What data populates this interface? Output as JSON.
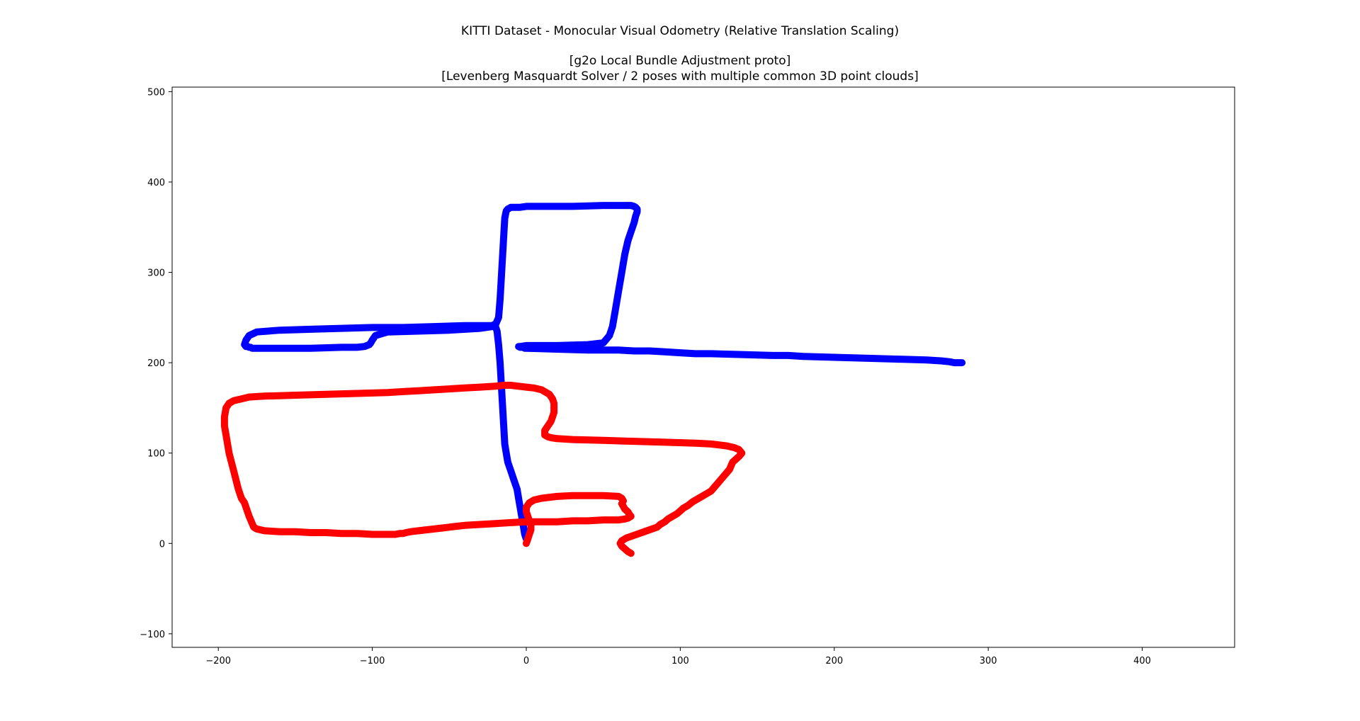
{
  "chart_data": {
    "type": "line",
    "title": [
      "KITTI Dataset - Monocular Visual Odometry (Relative Translation Scaling)",
      "",
      "[g2o Local Bundle Adjustment proto]",
      "[Levenberg Masquardt Solver / 2 poses with multiple common 3D point clouds]"
    ],
    "xlabel": "",
    "ylabel": "",
    "xlim": [
      -230,
      460
    ],
    "ylim": [
      -115,
      505
    ],
    "xticks": [
      -200,
      -100,
      0,
      100,
      200,
      300,
      400
    ],
    "yticks": [
      -100,
      0,
      100,
      200,
      300,
      400,
      500
    ],
    "xtick_labels": [
      "−200",
      "−100",
      "0",
      "100",
      "200",
      "300",
      "400"
    ],
    "ytick_labels": [
      "−100",
      "0",
      "100",
      "200",
      "300",
      "400",
      "500"
    ],
    "grid": false,
    "legend": "none",
    "series": [
      {
        "color": "#0000ff",
        "x": [
          0,
          -1,
          -2,
          -3,
          -4,
          -5,
          -6,
          -8,
          -10,
          -12,
          -13,
          -14,
          -15,
          -16,
          -17,
          -18,
          -19,
          -20,
          -20,
          -21,
          -22,
          -24,
          -30,
          -40,
          -60,
          -80,
          -100,
          -120,
          -140,
          -160,
          -175,
          -180,
          -182,
          -183,
          -182,
          -181,
          -180,
          -179,
          -178,
          -177,
          -176,
          -175,
          -174,
          -170,
          -160,
          -140,
          -120,
          -110,
          -105,
          -102,
          -101,
          -100,
          -98,
          -90,
          -70,
          -50,
          -30,
          -22,
          -20,
          -18,
          -17,
          -16,
          -15,
          -14,
          -13,
          -12,
          -11,
          -10,
          -8,
          -6,
          -4,
          0,
          10,
          30,
          50,
          60,
          65,
          68,
          70,
          71,
          72,
          72,
          71,
          70,
          68,
          66,
          64,
          62,
          60,
          58,
          56,
          54,
          50,
          40,
          20,
          0,
          -4,
          -5,
          -5,
          -5,
          -4,
          -3,
          -2,
          -1,
          0,
          20,
          40,
          50,
          60,
          70,
          80,
          90,
          100,
          110,
          120,
          140,
          160,
          170,
          180,
          200,
          220,
          240,
          260,
          270,
          275,
          278,
          280,
          281,
          282,
          283,
          283
        ],
        "y": [
          5,
          10,
          20,
          30,
          40,
          50,
          60,
          70,
          80,
          90,
          100,
          110,
          140,
          170,
          200,
          220,
          235,
          240,
          243,
          242,
          241,
          241,
          241,
          241,
          240,
          239,
          239,
          238,
          237,
          236,
          234,
          230,
          225,
          220,
          218,
          218,
          217,
          217,
          216,
          216,
          216,
          216,
          216,
          216,
          216,
          216,
          217,
          217,
          218,
          220,
          222,
          225,
          230,
          234,
          235,
          236,
          238,
          240,
          242,
          250,
          270,
          300,
          330,
          360,
          368,
          370,
          371,
          372,
          372,
          372,
          372,
          373,
          373,
          373,
          374,
          374,
          374,
          374,
          373,
          372,
          370,
          367,
          362,
          355,
          345,
          335,
          320,
          300,
          280,
          260,
          240,
          230,
          222,
          220,
          219,
          219,
          218,
          218,
          218,
          218,
          217,
          217,
          217,
          216,
          216,
          215,
          214,
          214,
          214,
          213,
          213,
          212,
          211,
          210,
          210,
          209,
          208,
          208,
          207,
          206,
          205,
          204,
          203,
          202,
          201,
          200,
          200,
          200,
          200,
          200,
          200
        ]
      },
      {
        "color": "#ff0000",
        "x": [
          0,
          1,
          2,
          3,
          3,
          2,
          1,
          0,
          0,
          2,
          5,
          10,
          20,
          30,
          40,
          50,
          60,
          62,
          63,
          62,
          63,
          64,
          66,
          67,
          68,
          66,
          64,
          60,
          50,
          40,
          30,
          20,
          10,
          0,
          -10,
          -20,
          -30,
          -40,
          -45,
          -50,
          -55,
          -60,
          -65,
          -70,
          -75,
          -78,
          -80,
          -82,
          -85,
          -90,
          -100,
          -110,
          -120,
          -130,
          -140,
          -150,
          -160,
          -170,
          -175,
          -177,
          -178,
          -179,
          -180,
          -181,
          -182,
          -183,
          -185,
          -187,
          -190,
          -193,
          -195,
          -196,
          -196,
          -195,
          -193,
          -190,
          -185,
          -180,
          -170,
          -150,
          -130,
          -110,
          -90,
          -80,
          -70,
          -60,
          -50,
          -40,
          -30,
          -20,
          -15,
          -10,
          -5,
          0,
          5,
          10,
          15,
          17,
          18,
          18,
          18,
          17,
          16,
          14,
          12,
          12,
          14,
          16,
          20,
          30,
          50,
          70,
          90,
          110,
          120,
          130,
          135,
          138,
          139,
          140,
          139,
          138,
          136,
          134,
          133,
          132,
          130,
          128,
          126,
          124,
          122,
          120,
          116,
          112,
          108,
          105,
          102,
          100,
          98,
          95,
          92,
          90,
          87,
          85,
          80,
          75,
          70,
          65,
          62,
          61,
          62,
          64,
          66,
          67,
          68
        ],
        "y": [
          0,
          5,
          10,
          15,
          20,
          25,
          30,
          35,
          40,
          45,
          48,
          50,
          52,
          53,
          53,
          53,
          52,
          50,
          47,
          44,
          41,
          38,
          35,
          32,
          30,
          28,
          27,
          26,
          26,
          25,
          25,
          24,
          24,
          24,
          23,
          22,
          21,
          20,
          19,
          18,
          17,
          16,
          15,
          14,
          13,
          12,
          11,
          11,
          10,
          10,
          10,
          11,
          11,
          12,
          12,
          13,
          13,
          14,
          16,
          18,
          22,
          26,
          30,
          35,
          40,
          45,
          50,
          60,
          80,
          100,
          120,
          130,
          140,
          150,
          155,
          158,
          160,
          162,
          163,
          164,
          165,
          166,
          167,
          168,
          169,
          170,
          171,
          172,
          173,
          174,
          175,
          175,
          174,
          173,
          172,
          170,
          165,
          160,
          155,
          150,
          145,
          140,
          135,
          130,
          125,
          120,
          118,
          117,
          116,
          115,
          114,
          113,
          112,
          111,
          110,
          108,
          106,
          104,
          102,
          100,
          98,
          96,
          93,
          90,
          86,
          82,
          78,
          74,
          70,
          66,
          62,
          58,
          54,
          50,
          46,
          42,
          39,
          36,
          33,
          30,
          27,
          24,
          21,
          18,
          15,
          12,
          9,
          6,
          3,
          0,
          -3,
          -6,
          -9,
          -10,
          -11
        ]
      }
    ]
  }
}
